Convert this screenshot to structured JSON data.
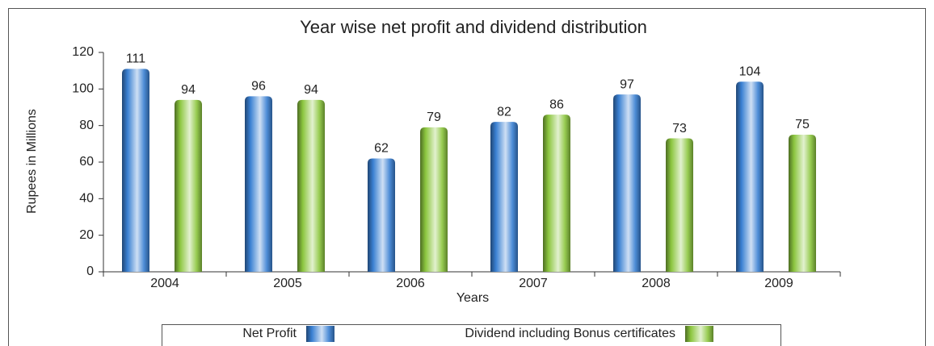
{
  "chart_data": {
    "type": "bar",
    "title": "Year wise net profit and dividend distribution",
    "x_label": "Years",
    "y_label": "Rupees in Millions",
    "categories": [
      "2004",
      "2005",
      "2006",
      "2007",
      "2008",
      "2009"
    ],
    "series": [
      {
        "name": "Net Profit",
        "color": "#3a80d2",
        "values": [
          111,
          96,
          62,
          82,
          97,
          104
        ]
      },
      {
        "name": "Dividend including Bonus certificates",
        "color": "#8cc63f",
        "values": [
          94,
          94,
          79,
          86,
          73,
          75
        ]
      }
    ],
    "ylim": [
      0,
      120
    ],
    "yticks": [
      0,
      20,
      40,
      60,
      80,
      100,
      120
    ],
    "grid": false,
    "legend": "bottom"
  }
}
